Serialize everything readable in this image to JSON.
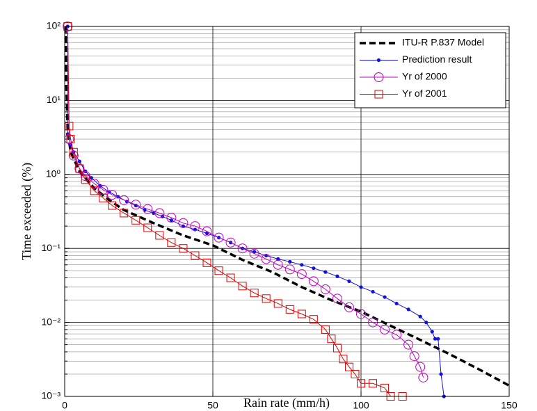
{
  "chart_data": {
    "type": "line",
    "xlabel": "Rain rate (mm/h)",
    "ylabel": "Time exceeded (%)",
    "xlim": [
      0,
      150
    ],
    "xticks": [
      0,
      50,
      100,
      150
    ],
    "ylim": [
      0.001,
      100
    ],
    "yscale": "log",
    "yticks": [
      {
        "value": 0.001,
        "label": "10⁻³"
      },
      {
        "value": 0.01,
        "label": "10⁻²"
      },
      {
        "value": 0.1,
        "label": "10⁻¹"
      },
      {
        "value": 1,
        "label": "10⁰"
      },
      {
        "value": 10,
        "label": "10¹"
      },
      {
        "value": 100,
        "label": "10²"
      }
    ],
    "yminorticks": [
      0.002,
      0.003,
      0.004,
      0.005,
      0.006,
      0.007,
      0.008,
      0.009,
      0.02,
      0.03,
      0.04,
      0.05,
      0.06,
      0.07,
      0.08,
      0.09,
      0.2,
      0.3,
      0.4,
      0.5,
      0.6,
      0.7,
      0.8,
      0.9,
      2,
      3,
      4,
      5,
      6,
      7,
      8,
      9,
      20,
      30,
      40,
      50,
      60,
      70,
      80,
      90
    ],
    "grid": true,
    "legend": "upper right",
    "series": [
      {
        "name": "ITU-R P.837 Model",
        "color": "#000000",
        "style": "dashed",
        "marker": "none",
        "x": [
          0.3,
          0.5,
          1,
          2,
          5,
          10,
          15,
          20,
          30,
          40,
          50,
          60,
          70,
          80,
          90,
          100,
          110,
          120,
          130,
          140,
          150
        ],
        "values": [
          100,
          20,
          4,
          2,
          1.1,
          0.65,
          0.45,
          0.33,
          0.22,
          0.15,
          0.11,
          0.07,
          0.048,
          0.03,
          0.02,
          0.014,
          0.009,
          0.0058,
          0.0037,
          0.0023,
          0.0014
        ]
      },
      {
        "name": "Prediction result",
        "color": "#1010e0",
        "style": "solid",
        "marker": "dot",
        "x": [
          1,
          1,
          2,
          3,
          5,
          7,
          9,
          12,
          15,
          18,
          21,
          24,
          27,
          30,
          33,
          36,
          40,
          44,
          48,
          52,
          56,
          60,
          64,
          68,
          72,
          76,
          80,
          84,
          88,
          92,
          96,
          100,
          104,
          108,
          112,
          116,
          120,
          122,
          124,
          125,
          126,
          127,
          128
        ],
        "values": [
          100,
          3.5,
          2.5,
          2,
          1.5,
          1.1,
          0.9,
          0.7,
          0.58,
          0.5,
          0.43,
          0.38,
          0.33,
          0.3,
          0.27,
          0.24,
          0.2,
          0.18,
          0.16,
          0.14,
          0.12,
          0.1,
          0.09,
          0.08,
          0.072,
          0.066,
          0.06,
          0.054,
          0.048,
          0.042,
          0.036,
          0.03,
          0.026,
          0.022,
          0.018,
          0.015,
          0.012,
          0.01,
          0.0075,
          0.006,
          0.006,
          0.002,
          0.001
        ]
      },
      {
        "name": "Yr of 2000",
        "color": "#c000c0",
        "style": "solid",
        "marker": "circle",
        "x": [
          1,
          1.5,
          3,
          5,
          7,
          10,
          13,
          16,
          20,
          24,
          28,
          32,
          36,
          40,
          44,
          48,
          52,
          56,
          60,
          64,
          68,
          72,
          76,
          80,
          84,
          88,
          92,
          96,
          100,
          104,
          108,
          112,
          116,
          118,
          120,
          121
        ],
        "values": [
          100,
          3,
          1.8,
          1.2,
          0.95,
          0.75,
          0.62,
          0.53,
          0.45,
          0.39,
          0.34,
          0.3,
          0.26,
          0.22,
          0.2,
          0.17,
          0.14,
          0.12,
          0.1,
          0.085,
          0.072,
          0.06,
          0.052,
          0.045,
          0.036,
          0.028,
          0.021,
          0.016,
          0.013,
          0.01,
          0.008,
          0.0068,
          0.005,
          0.0035,
          0.0025,
          0.0018
        ]
      },
      {
        "name": "Yr of 2001",
        "color": "#e00000",
        "style": "solid",
        "marker": "square",
        "x": [
          1,
          1.5,
          2,
          3,
          5,
          7,
          10,
          13,
          16,
          20,
          24,
          28,
          32,
          36,
          40,
          44,
          48,
          52,
          56,
          60,
          64,
          68,
          72,
          76,
          80,
          84,
          88,
          90,
          92,
          94,
          96,
          98,
          100,
          104,
          108,
          110,
          114
        ],
        "values": [
          100,
          4.5,
          3,
          2,
          1.2,
          0.85,
          0.6,
          0.48,
          0.38,
          0.3,
          0.24,
          0.19,
          0.15,
          0.12,
          0.1,
          0.08,
          0.064,
          0.05,
          0.04,
          0.031,
          0.025,
          0.021,
          0.018,
          0.015,
          0.013,
          0.011,
          0.008,
          0.006,
          0.0045,
          0.0032,
          0.0025,
          0.002,
          0.0015,
          0.0015,
          0.0013,
          0.001,
          0.001
        ]
      }
    ]
  }
}
